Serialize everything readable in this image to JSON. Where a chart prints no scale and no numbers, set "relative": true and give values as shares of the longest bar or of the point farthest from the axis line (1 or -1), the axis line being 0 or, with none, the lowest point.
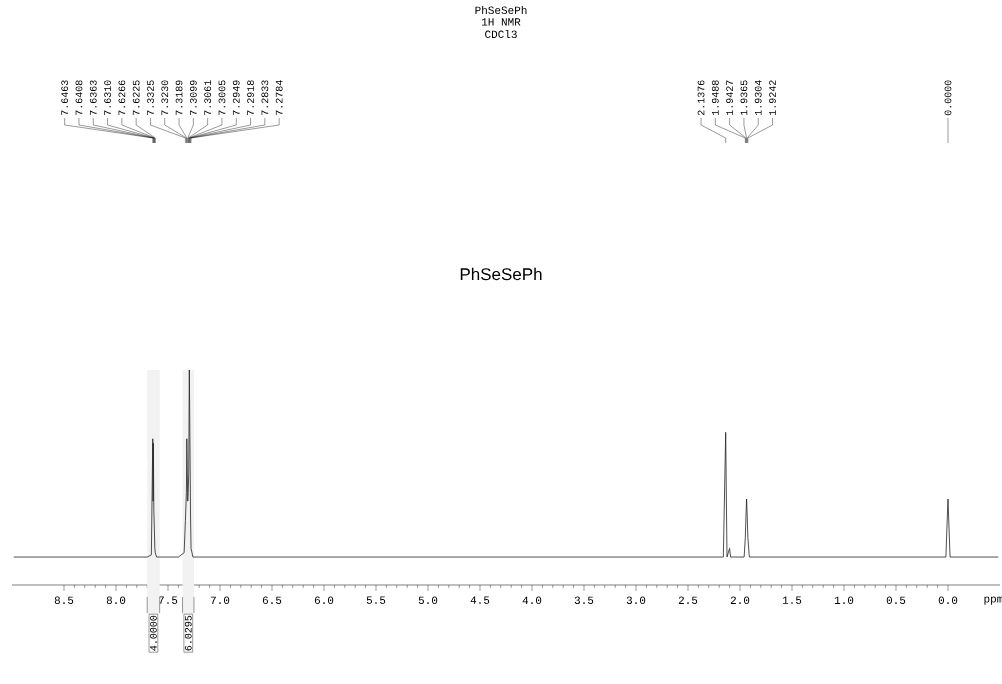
{
  "chart_data": {
    "type": "line",
    "relative": true,
    "title": "PhSeSePh",
    "subtitle": "PhSeSePh",
    "xlabel": "ppm",
    "xlim": [
      9.0,
      -0.5
    ],
    "xticks": [
      8.5,
      {
        "value": 8.0,
        "label": "8.0"
      },
      7.5,
      {
        "value": 7.0,
        "label": "7.0"
      },
      6.5,
      {
        "value": 6.0,
        "label": "6.0"
      },
      5.5,
      {
        "value": 5.0,
        "label": "5.0"
      },
      4.5,
      {
        "value": 4.0,
        "label": "4.0"
      },
      3.5,
      {
        "value": 3.0,
        "label": "3.0"
      },
      2.5,
      {
        "value": 2.0,
        "label": "2.0"
      },
      1.5,
      {
        "value": 1.0,
        "label": "1.0"
      },
      0.5,
      {
        "value": 0,
        "label": "0.0"
      }
    ],
    "series": [
      {
        "color": "#222222",
        "x": [
          8.98,
          7.7,
          7.66,
          7.6463,
          7.6435,
          7.6408,
          7.6363,
          7.631,
          7.6266,
          7.6225,
          7.61,
          7.4,
          7.345,
          7.3325,
          7.323,
          7.3189,
          7.3099,
          7.3061,
          7.3005,
          7.2949,
          7.2918,
          7.2833,
          7.2784,
          7.26,
          2.16,
          2.1376,
          2.125,
          2.1,
          2.09,
          1.96,
          1.9488,
          1.9427,
          1.9365,
          1.9304,
          1.9242,
          1.91,
          0.02,
          0.0,
          -0.02,
          -0.48
        ],
        "values": [
          0.13,
          0.13,
          0.14,
          0.68,
          0.39,
          0.66,
          0.35,
          0.26,
          0.17,
          0.15,
          0.13,
          0.13,
          0.15,
          0.3,
          0.43,
          0.68,
          0.39,
          0.43,
          0.52,
          1.0,
          0.83,
          0.33,
          0.17,
          0.13,
          0.13,
          0.71,
          0.13,
          0.17,
          0.13,
          0.13,
          0.22,
          0.32,
          0.4,
          0.32,
          0.22,
          0.13,
          0.13,
          0.4,
          0.13,
          0.13
        ]
      }
    ],
    "bands": [
      {
        "axis": "x",
        "from": 7.7,
        "to": 7.58,
        "label": "4.0000",
        "color": "#f2f2f2"
      },
      {
        "axis": "x",
        "from": 7.36,
        "to": 7.25,
        "label": "6.0295",
        "color": "#f2f2f2"
      }
    ],
    "annotations": [
      "1H NMR",
      "CDCl3",
      {
        "text": "7.6463",
        "x": 7.6463
      },
      {
        "text": "7.6408",
        "x": 7.6408
      },
      {
        "text": "7.6363",
        "x": 7.6363
      },
      {
        "text": "7.6310",
        "x": 7.631
      },
      {
        "text": "7.6266",
        "x": 7.6266
      },
      {
        "text": "7.6225",
        "x": 7.6225
      },
      {
        "text": "7.3325",
        "x": 7.3325
      },
      {
        "text": "7.3230",
        "x": 7.323
      },
      {
        "text": "7.3189",
        "x": 7.3189
      },
      {
        "text": "7.3099",
        "x": 7.3099
      },
      {
        "text": "7.3061",
        "x": 7.3061
      },
      {
        "text": "7.3005",
        "x": 7.3005
      },
      {
        "text": "7.2949",
        "x": 7.2949
      },
      {
        "text": "7.2918",
        "x": 7.2918
      },
      {
        "text": "7.2833",
        "x": 7.2833
      },
      {
        "text": "7.2784",
        "x": 7.2784
      },
      {
        "text": "2.1376",
        "x": 2.1376
      },
      {
        "text": "1.9488",
        "x": 1.9488
      },
      {
        "text": "1.9427",
        "x": 1.9427
      },
      {
        "text": "1.9365",
        "x": 1.9365
      },
      {
        "text": "1.9304",
        "x": 1.9304
      },
      {
        "text": "1.9242",
        "x": 1.9242
      },
      {
        "text": "0.0000",
        "x": 0.0
      }
    ]
  }
}
